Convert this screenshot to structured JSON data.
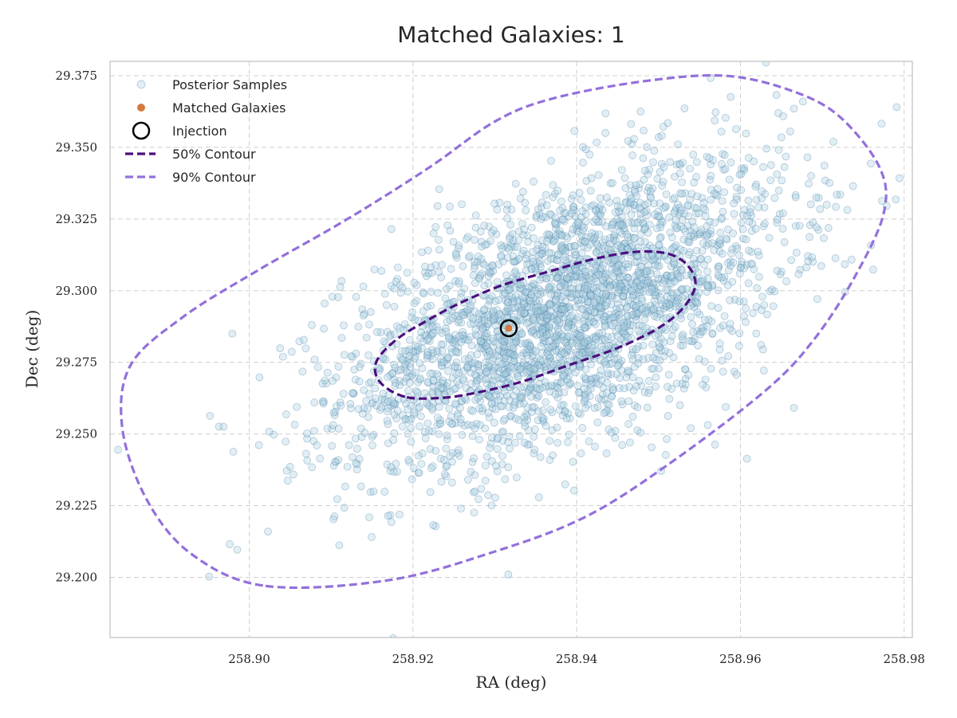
{
  "chart_data": {
    "type": "scatter",
    "title": "Matched Galaxies: 1",
    "xlabel": "RA (deg)",
    "ylabel": "Dec (deg)",
    "xlim": [
      258.883,
      258.981
    ],
    "ylim": [
      29.179,
      29.38
    ],
    "x_ticks": [
      258.9,
      258.92,
      258.94,
      258.96,
      258.98
    ],
    "x_tick_labels": [
      "258.90",
      "258.92",
      "258.94",
      "258.96",
      "258.98"
    ],
    "y_ticks": [
      29.2,
      29.225,
      29.25,
      29.275,
      29.3,
      29.325,
      29.35,
      29.375
    ],
    "y_tick_labels": [
      "29.200",
      "29.225",
      "29.250",
      "29.275",
      "29.300",
      "29.325",
      "29.350",
      "29.375"
    ],
    "grid": true,
    "legend_position": "top-left",
    "colors": {
      "samples_fill": "#a9cfe0",
      "samples_edge": "#4a7ea6",
      "matched": "#d47a3f",
      "injection": "#000000",
      "contour_50": "#4b0f7d",
      "contour_90": "#9370db"
    },
    "legend": [
      {
        "label": "Posterior Samples",
        "marker": "sample"
      },
      {
        "label": "Matched Galaxies",
        "marker": "matched"
      },
      {
        "label": "Injection",
        "marker": "injection"
      },
      {
        "label": "50% Contour",
        "marker": "line50"
      },
      {
        "label": "90% Contour",
        "marker": "line90"
      }
    ],
    "posterior_samples": {
      "count": 3000,
      "mean": [
        258.9385,
        29.292
      ],
      "std": [
        0.0135,
        0.026
      ],
      "correlation": 0.55
    },
    "matched_galaxies": [
      {
        "ra": 258.9317,
        "dec": 29.2869
      }
    ],
    "injection": {
      "ra": 258.9317,
      "dec": 29.2869
    },
    "contours": [
      {
        "level": "50%",
        "points": [
          [
            258.919,
            29.263
          ],
          [
            258.916,
            29.268
          ],
          [
            258.9155,
            29.275
          ],
          [
            258.918,
            29.283
          ],
          [
            258.922,
            29.29
          ],
          [
            258.926,
            29.296
          ],
          [
            258.931,
            29.302
          ],
          [
            258.937,
            29.307
          ],
          [
            258.942,
            29.311
          ],
          [
            258.947,
            29.3135
          ],
          [
            258.951,
            29.313
          ],
          [
            258.9535,
            29.309
          ],
          [
            258.9545,
            29.302
          ],
          [
            258.953,
            29.294
          ],
          [
            258.95,
            29.287
          ],
          [
            258.945,
            29.28
          ],
          [
            258.939,
            29.274
          ],
          [
            258.933,
            29.268
          ],
          [
            258.927,
            29.264
          ],
          [
            258.923,
            29.2625
          ],
          [
            258.919,
            29.263
          ]
        ]
      },
      {
        "level": "90%",
        "points": [
          [
            258.902,
            29.197
          ],
          [
            258.917,
            29.199
          ],
          [
            258.93,
            29.209
          ],
          [
            258.941,
            29.221
          ],
          [
            258.951,
            29.239
          ],
          [
            258.963,
            29.265
          ],
          [
            258.969,
            29.283
          ],
          [
            258.974,
            29.305
          ],
          [
            258.9775,
            29.327
          ],
          [
            258.977,
            29.343
          ],
          [
            258.972,
            29.361
          ],
          [
            258.966,
            29.37
          ],
          [
            258.958,
            29.375
          ],
          [
            258.948,
            29.373
          ],
          [
            258.937,
            29.367
          ],
          [
            258.93,
            29.359
          ],
          [
            258.922,
            29.343
          ],
          [
            258.912,
            29.325
          ],
          [
            258.901,
            29.307
          ],
          [
            258.892,
            29.291
          ],
          [
            258.8855,
            29.274
          ],
          [
            258.8845,
            29.252
          ],
          [
            258.8875,
            29.227
          ],
          [
            258.893,
            29.208
          ],
          [
            258.902,
            29.197
          ]
        ]
      }
    ]
  }
}
